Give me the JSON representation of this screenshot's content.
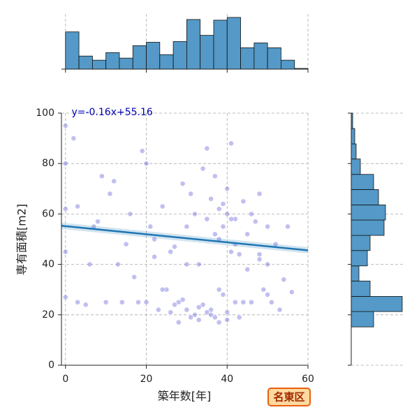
{
  "chart_data": [
    {
      "type": "scatter",
      "x_label": "築年数[年]",
      "y_label": "専有面積[m2]",
      "annotation": "y=-0.16x+55.16",
      "regression": {
        "slope": -0.16,
        "intercept": 55.16,
        "color": "#1f77b4"
      },
      "xlim": [
        -1,
        60
      ],
      "ylim": [
        0,
        100
      ],
      "xticks": [
        0,
        20,
        40,
        60
      ],
      "yticks": [
        0,
        20,
        40,
        60,
        80,
        100
      ],
      "grid": true,
      "legend": "lower right",
      "series": [
        {
          "name": "名東区",
          "color": "#4a4ad0",
          "x": [
            0,
            0,
            0,
            0,
            0,
            2,
            3,
            5,
            6,
            8,
            10,
            12,
            14,
            15,
            16,
            18,
            20,
            20,
            21,
            22,
            23,
            24,
            25,
            26,
            27,
            28,
            29,
            30,
            30,
            31,
            32,
            33,
            33,
            34,
            35,
            35,
            36,
            36,
            37,
            37,
            38,
            38,
            38,
            39,
            39,
            40,
            40,
            40,
            41,
            41,
            42,
            42,
            43,
            44,
            45,
            45,
            46,
            47,
            48,
            48,
            49,
            50,
            50,
            51,
            52,
            53,
            54,
            55,
            56,
            3,
            7,
            9,
            11,
            13,
            17,
            19,
            22,
            24,
            26,
            28,
            30,
            32,
            34,
            36,
            38,
            40,
            42,
            44,
            46,
            48,
            50,
            27,
            29,
            31,
            33,
            35,
            37,
            39,
            41,
            43
          ],
          "values": [
            27,
            45,
            62,
            80,
            95,
            90,
            63,
            24,
            40,
            57,
            25,
            73,
            25,
            48,
            60,
            25,
            25,
            80,
            55,
            43,
            22,
            63,
            30,
            21,
            47,
            25,
            72,
            22,
            55,
            68,
            20,
            18,
            40,
            24,
            58,
            86,
            22,
            66,
            19,
            75,
            50,
            62,
            17,
            28,
            55,
            60,
            21,
            70,
            45,
            88,
            25,
            58,
            19,
            65,
            38,
            52,
            25,
            57,
            44,
            68,
            30,
            55,
            40,
            25,
            48,
            22,
            34,
            55,
            29,
            25,
            55,
            75,
            68,
            40,
            35,
            85,
            50,
            30,
            45,
            17,
            40,
            60,
            78,
            20,
            30,
            18,
            48,
            25,
            60,
            42,
            28,
            24,
            26,
            19,
            23,
            21,
            52,
            64,
            58,
            44
          ]
        }
      ]
    },
    {
      "type": "histogram",
      "orientation": "vertical",
      "color": "#5499c7",
      "bins": [
        0,
        3.33,
        6.67,
        10,
        13.33,
        16.67,
        20,
        23.33,
        26.67,
        30,
        33.33,
        36.67,
        40,
        43.33,
        46.67,
        50,
        53.33,
        56.67,
        60
      ],
      "values": [
        54,
        19,
        13,
        24,
        16,
        34,
        39,
        21,
        40,
        72,
        49,
        71,
        75,
        31,
        38,
        31,
        13,
        1
      ],
      "ylim": [
        0,
        80
      ]
    },
    {
      "type": "histogram",
      "orientation": "horizontal",
      "color": "#5499c7",
      "bins": [
        15.2,
        21.3,
        27.3,
        33.4,
        39.4,
        45.5,
        51.5,
        57.6,
        63.6,
        69.7,
        75.7,
        81.8,
        87.8,
        93.9,
        100
      ],
      "values": [
        32,
        73,
        27,
        11,
        23,
        27,
        47,
        49,
        39,
        32,
        13,
        7,
        5,
        2
      ],
      "xlim": [
        0,
        75
      ]
    }
  ]
}
